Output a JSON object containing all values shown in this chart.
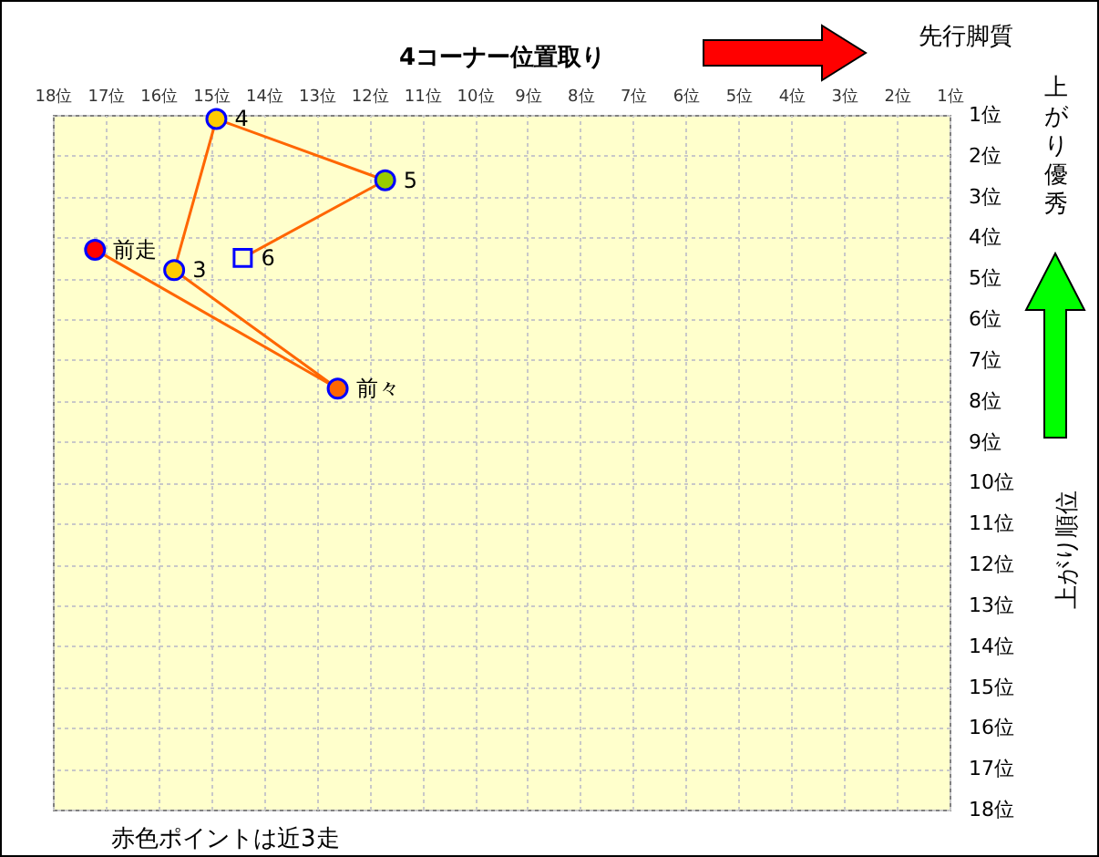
{
  "chart_data": {
    "type": "scatter",
    "xlabel": "4コーナー位置取り",
    "ylabel": "上がり順位",
    "annotations": [
      "先行脚質",
      "上がり優秀",
      "赤色ポイントは近3走"
    ],
    "xlim": [
      18,
      1
    ],
    "ylim": [
      18,
      1
    ],
    "xticks": [
      {
        "value": 18,
        "label": "18位"
      },
      {
        "value": 17,
        "label": "17位"
      },
      {
        "value": 16,
        "label": "16位"
      },
      {
        "value": 15,
        "label": "15位"
      },
      {
        "value": 14,
        "label": "14位"
      },
      {
        "value": 13,
        "label": "13位"
      },
      {
        "value": 12,
        "label": "12位"
      },
      {
        "value": 11,
        "label": "11位"
      },
      {
        "value": 10,
        "label": "10位"
      },
      {
        "value": 9,
        "label": "9位"
      },
      {
        "value": 8,
        "label": "8位"
      },
      {
        "value": 7,
        "label": "7位"
      },
      {
        "value": 6,
        "label": "6位"
      },
      {
        "value": 5,
        "label": "5位"
      },
      {
        "value": 4,
        "label": "4位"
      },
      {
        "value": 3,
        "label": "3位"
      },
      {
        "value": 2,
        "label": "2位"
      },
      {
        "value": 1,
        "label": "1位"
      }
    ],
    "yticks": [
      {
        "value": 1,
        "label": "1位"
      },
      {
        "value": 2,
        "label": "2位"
      },
      {
        "value": 3,
        "label": "3位"
      },
      {
        "value": 4,
        "label": "4位"
      },
      {
        "value": 5,
        "label": "5位"
      },
      {
        "value": 6,
        "label": "6位"
      },
      {
        "value": 7,
        "label": "7位"
      },
      {
        "value": 8,
        "label": "8位"
      },
      {
        "value": 9,
        "label": "9位"
      },
      {
        "value": 10,
        "label": "10位"
      },
      {
        "value": 11,
        "label": "11位"
      },
      {
        "value": 12,
        "label": "12位"
      },
      {
        "value": 13,
        "label": "13位"
      },
      {
        "value": 14,
        "label": "14位"
      },
      {
        "value": 15,
        "label": "15位"
      },
      {
        "value": 16,
        "label": "16位"
      },
      {
        "value": 17,
        "label": "17位"
      },
      {
        "value": 18,
        "label": "18位"
      }
    ],
    "grid": true,
    "series": [
      {
        "type": "line",
        "color": "#ff6600",
        "marker": "none",
        "x": [
          17.2,
          12.6,
          15.7,
          14.9,
          11.7,
          14.4
        ],
        "values": [
          4.3,
          7.7,
          4.8,
          1.1,
          2.6,
          4.5
        ]
      },
      {
        "name": "前走",
        "color": "#ff0000",
        "marker": "circle",
        "x": [
          17.2
        ],
        "values": [
          4.3
        ]
      },
      {
        "name": "前々",
        "color": "#ff6600",
        "marker": "circle",
        "x": [
          12.6
        ],
        "values": [
          7.7
        ]
      },
      {
        "name": "3",
        "color": "#ffcc00",
        "marker": "circle",
        "x": [
          15.7
        ],
        "values": [
          4.8
        ]
      },
      {
        "name": "4",
        "color": "#ffcc00",
        "marker": "circle",
        "x": [
          14.9
        ],
        "values": [
          1.1
        ]
      },
      {
        "name": "5",
        "color": "#99cc00",
        "marker": "circle",
        "x": [
          11.7
        ],
        "values": [
          2.6
        ]
      },
      {
        "name": "6",
        "color": "#ffffcc",
        "marker": "square",
        "x": [
          14.4
        ],
        "values": [
          4.5
        ]
      }
    ]
  }
}
